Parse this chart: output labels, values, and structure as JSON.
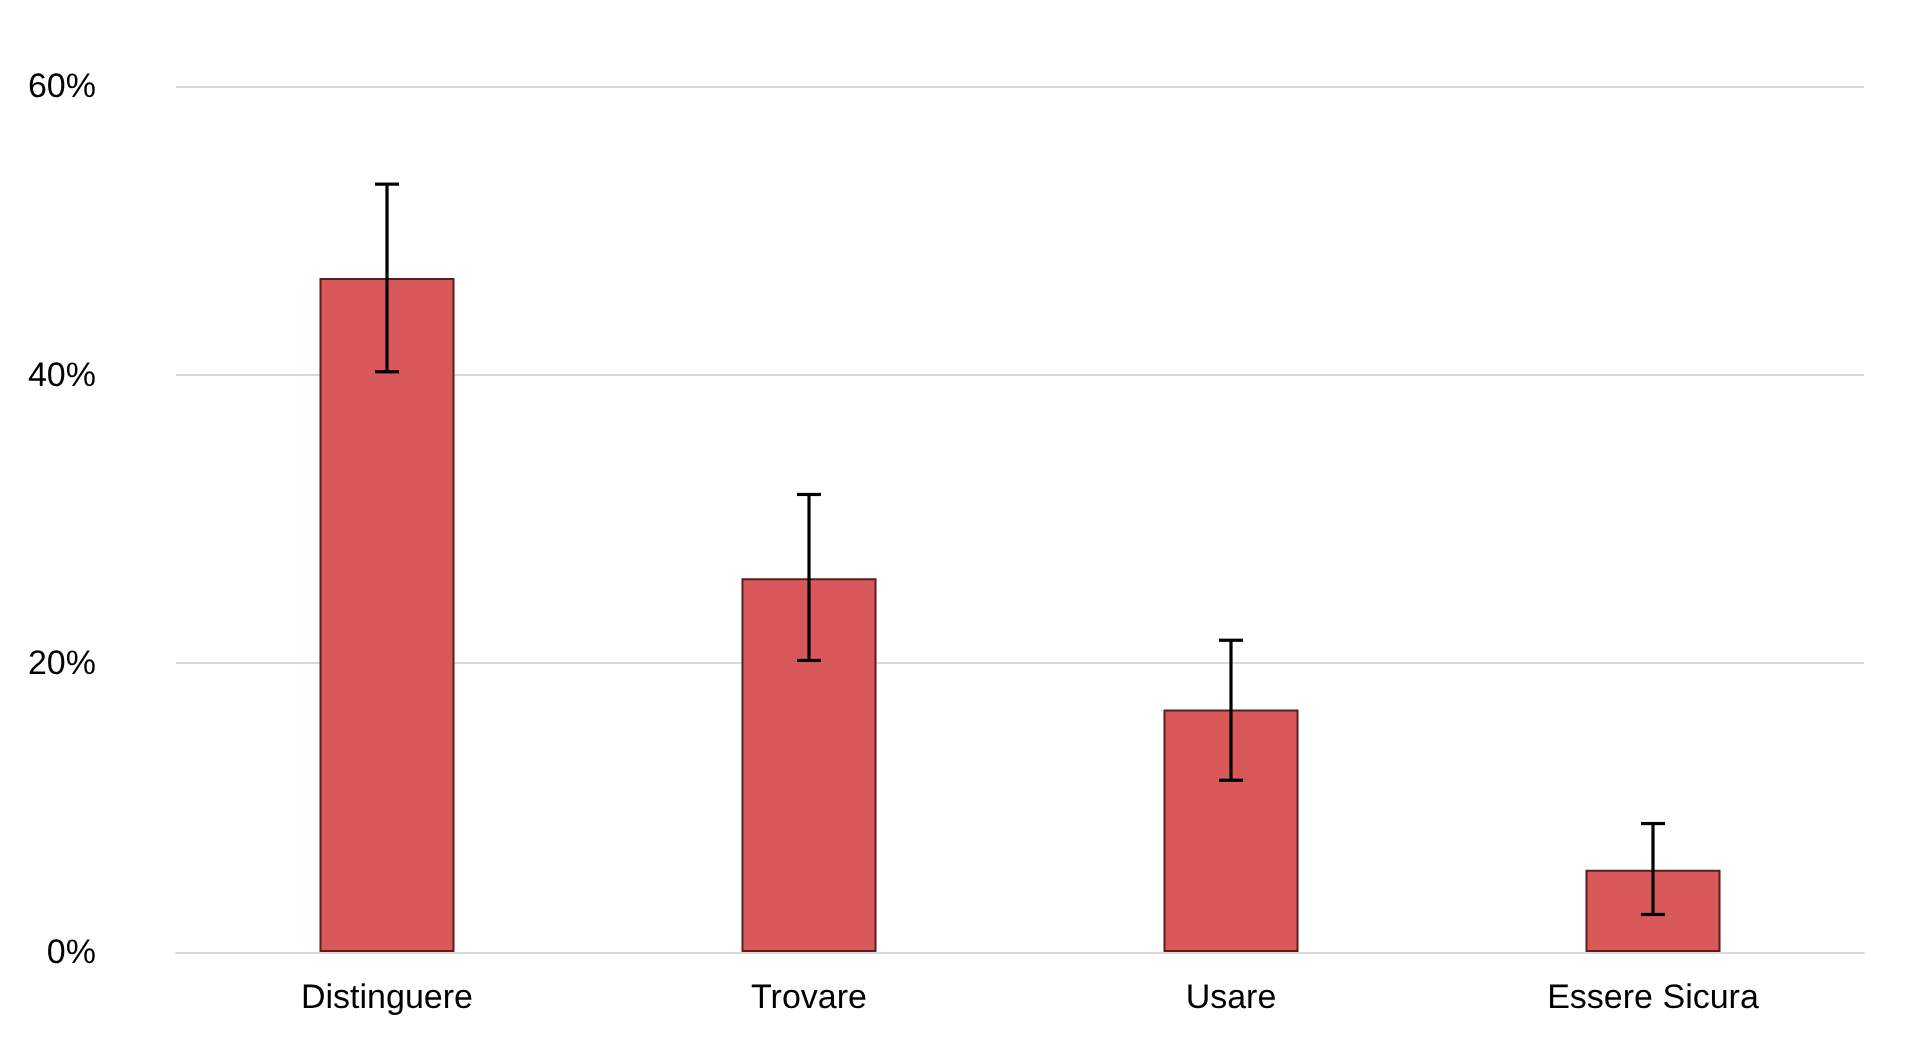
{
  "chart_data": {
    "type": "bar",
    "categories": [
      "Distinguere",
      "Trovare",
      "Usare",
      "Essere Sicura"
    ],
    "values": [
      46.7,
      25.9,
      16.8,
      5.7
    ],
    "errors": [
      [
        40.2,
        53.2
      ],
      [
        20.2,
        31.7
      ],
      [
        11.9,
        21.6
      ],
      [
        2.6,
        8.9
      ]
    ],
    "color": "#d9595a",
    "ylim": [
      0,
      60
    ],
    "yticks": [
      {
        "value": 0,
        "label": "0%"
      },
      {
        "value": 20,
        "label": "20%"
      },
      {
        "value": 40,
        "label": "40%"
      },
      {
        "value": 60,
        "label": "60%"
      }
    ],
    "grid": "y"
  }
}
